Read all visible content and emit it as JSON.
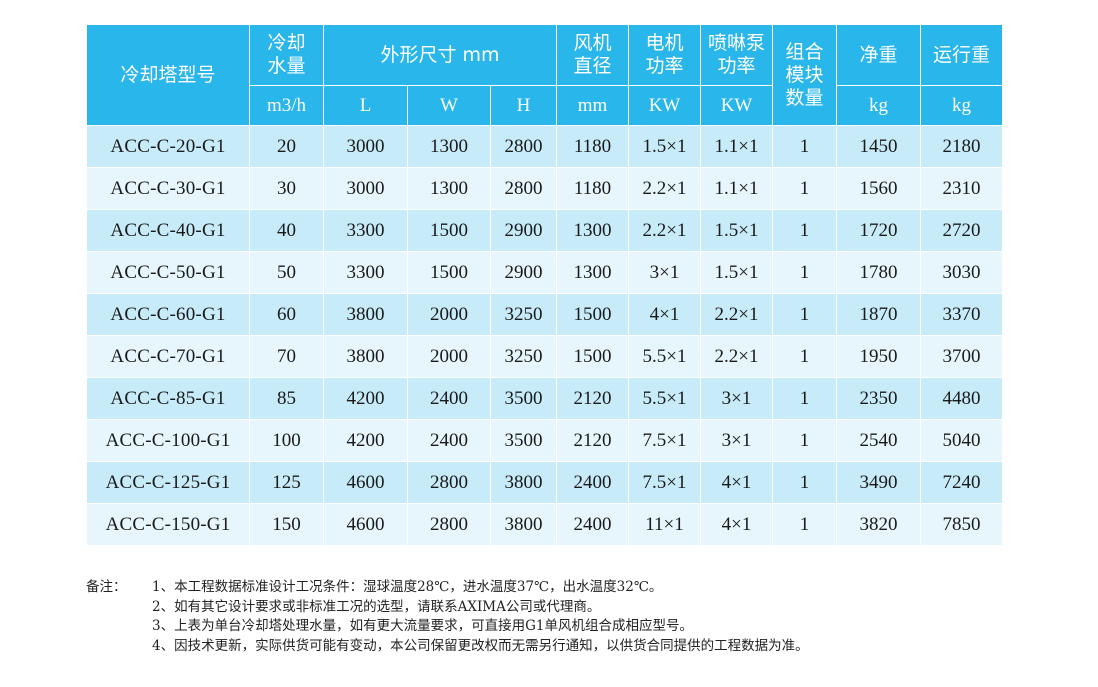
{
  "table": {
    "header_row1": {
      "model": "冷却塔型号",
      "water_flow": "冷却水量",
      "dimensions": "外形尺寸 mm",
      "fan_diameter": "风机直径",
      "motor_power": "电机功率",
      "spray_pump_power": "喷啉泵功率",
      "module_count": "组合模块数量",
      "net_weight": "净重",
      "operating_weight": "运行重"
    },
    "header_row2": {
      "water_flow_unit": "m3/h",
      "length": "L",
      "width": "W",
      "height": "H",
      "fan_unit": "mm",
      "motor_unit": "KW",
      "pump_unit": "KW",
      "net_weight_unit": "kg",
      "operating_weight_unit": "kg"
    },
    "rows": [
      {
        "model": "ACC-C-20-G1",
        "flow": "20",
        "L": "3000",
        "W": "1300",
        "H": "2800",
        "fan": "1180",
        "motor": "1.5×1",
        "pump": "1.1×1",
        "modules": "1",
        "net": "1450",
        "oper": "2180"
      },
      {
        "model": "ACC-C-30-G1",
        "flow": "30",
        "L": "3000",
        "W": "1300",
        "H": "2800",
        "fan": "1180",
        "motor": "2.2×1",
        "pump": "1.1×1",
        "modules": "1",
        "net": "1560",
        "oper": "2310"
      },
      {
        "model": "ACC-C-40-G1",
        "flow": "40",
        "L": "3300",
        "W": "1500",
        "H": "2900",
        "fan": "1300",
        "motor": "2.2×1",
        "pump": "1.5×1",
        "modules": "1",
        "net": "1720",
        "oper": "2720"
      },
      {
        "model": "ACC-C-50-G1",
        "flow": "50",
        "L": "3300",
        "W": "1500",
        "H": "2900",
        "fan": "1300",
        "motor": "3×1",
        "pump": "1.5×1",
        "modules": "1",
        "net": "1780",
        "oper": "3030"
      },
      {
        "model": "ACC-C-60-G1",
        "flow": "60",
        "L": "3800",
        "W": "2000",
        "H": "3250",
        "fan": "1500",
        "motor": "4×1",
        "pump": "2.2×1",
        "modules": "1",
        "net": "1870",
        "oper": "3370"
      },
      {
        "model": "ACC-C-70-G1",
        "flow": "70",
        "L": "3800",
        "W": "2000",
        "H": "3250",
        "fan": "1500",
        "motor": "5.5×1",
        "pump": "2.2×1",
        "modules": "1",
        "net": "1950",
        "oper": "3700"
      },
      {
        "model": "ACC-C-85-G1",
        "flow": "85",
        "L": "4200",
        "W": "2400",
        "H": "3500",
        "fan": "2120",
        "motor": "5.5×1",
        "pump": "3×1",
        "modules": "1",
        "net": "2350",
        "oper": "4480"
      },
      {
        "model": "ACC-C-100-G1",
        "flow": "100",
        "L": "4200",
        "W": "2400",
        "H": "3500",
        "fan": "2120",
        "motor": "7.5×1",
        "pump": "3×1",
        "modules": "1",
        "net": "2540",
        "oper": "5040"
      },
      {
        "model": "ACC-C-125-G1",
        "flow": "125",
        "L": "4600",
        "W": "2800",
        "H": "3800",
        "fan": "2400",
        "motor": "7.5×1",
        "pump": "4×1",
        "modules": "1",
        "net": "3490",
        "oper": "7240"
      },
      {
        "model": "ACC-C-150-G1",
        "flow": "150",
        "L": "4600",
        "W": "2800",
        "H": "3800",
        "fan": "2400",
        "motor": "11×1",
        "pump": "4×1",
        "modules": "1",
        "net": "3820",
        "oper": "7850"
      }
    ]
  },
  "notes": {
    "label": "备注：",
    "items": [
      "1、本工程数据标准设计工况条件：湿球温度28℃，进水温度37℃，出水温度32℃。",
      "2、如有其它设计要求或非标准工况的选型，请联系AXIMA公司或代理商。",
      "3、上表为单台冷却塔处理水量，如有更大流量要求，可直接用G1单风机组合成相应型号。",
      "4、因技术更新，实际供货可能有变动，本公司保留更改权而无需另行通知，以供货合同提供的工程数据为准。"
    ]
  }
}
